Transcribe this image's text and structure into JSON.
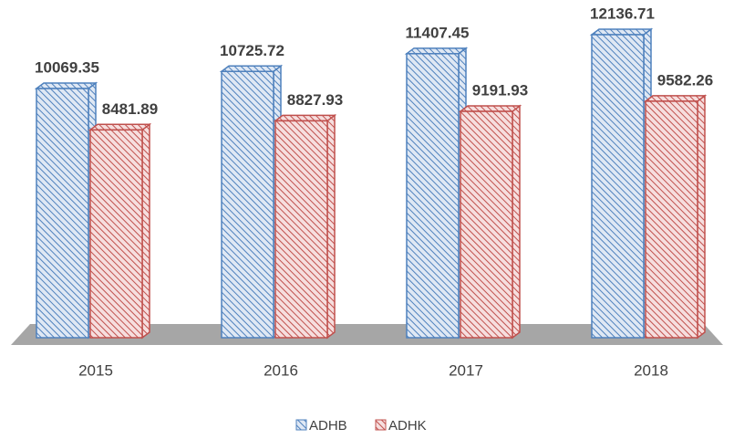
{
  "chart_data": {
    "type": "bar3d",
    "categories": [
      "2015",
      "2016",
      "2017",
      "2018"
    ],
    "series": [
      {
        "name": "ADHB",
        "color": "#4f81bd",
        "values": [
          10069.35,
          10725.72,
          11407.45,
          12136.71
        ]
      },
      {
        "name": "ADHK",
        "color": "#c0504d",
        "values": [
          8481.89,
          8827.93,
          9191.93,
          9582.26
        ]
      }
    ],
    "legend": "bottom"
  }
}
